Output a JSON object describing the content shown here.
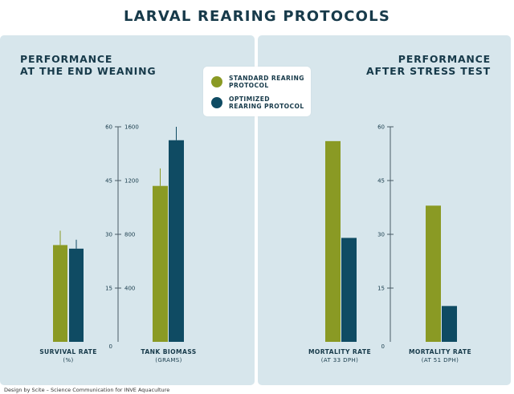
{
  "title": "LARVAL REARING PROTOCOLS",
  "left_panel": {
    "title_line1": "PERFORMANCE",
    "title_line2": "AT THE END WEANING"
  },
  "right_panel": {
    "title_line1": "PERFORMANCE",
    "title_line2": "AFTER STRESS TEST"
  },
  "legend": {
    "standard": "STANDARD REARING PROTOCOL",
    "optimized": "OPTIMIZED REARING PROTOCOL"
  },
  "colors": {
    "standard": "#8a9a24",
    "optimized": "#0f4b63",
    "panel_bg": "#d7e6ec",
    "text": "#173a4a"
  },
  "credit": "Design by Scite – Science Communication for INVE Aquaculture",
  "chart_data": [
    {
      "type": "bar",
      "title": "PERFORMANCE AT THE END WEANING",
      "categories": [
        "SURVIVAL RATE (%)"
      ],
      "category_main": [
        "SURVIVAL RATE"
      ],
      "category_sub": [
        "(%)"
      ],
      "ylim": [
        0,
        60
      ],
      "yticks": [
        0,
        15,
        30,
        45,
        60
      ],
      "series": [
        {
          "name": "STANDARD REARING PROTOCOL",
          "values": [
            27
          ],
          "errors": [
            4
          ]
        },
        {
          "name": "OPTIMIZED REARING PROTOCOL",
          "values": [
            26
          ],
          "errors": [
            2.5
          ]
        }
      ]
    },
    {
      "type": "bar",
      "title": "PERFORMANCE AT THE END WEANING",
      "categories": [
        "TANK BIOMASS (GRAMS)"
      ],
      "category_main": [
        "TANK BIOMASS"
      ],
      "category_sub": [
        "(GRAMS)"
      ],
      "ylim": [
        0,
        1600
      ],
      "yticks": [
        0,
        400,
        800,
        1200,
        1600
      ],
      "series": [
        {
          "name": "STANDARD REARING PROTOCOL",
          "values": [
            1160
          ],
          "errors": [
            130
          ]
        },
        {
          "name": "OPTIMIZED REARING PROTOCOL",
          "values": [
            1500
          ],
          "errors": [
            100
          ]
        }
      ]
    },
    {
      "type": "bar",
      "title": "PERFORMANCE AFTER STRESS TEST",
      "categories": [
        "MORTALITY RATE (AT 33 DPH)",
        "MORTALITY RATE (AT 51 DPH)"
      ],
      "category_main": [
        "MORTALITY RATE",
        "MORTALITY RATE"
      ],
      "category_sub": [
        "(AT 33 DPH)",
        "(AT 51 DPH)"
      ],
      "ylim": [
        0,
        60
      ],
      "yticks": [
        0,
        15,
        30,
        45,
        60
      ],
      "series": [
        {
          "name": "STANDARD REARING PROTOCOL",
          "values": [
            56,
            38
          ]
        },
        {
          "name": "OPTIMIZED REARING PROTOCOL",
          "values": [
            29,
            10
          ]
        }
      ]
    }
  ]
}
